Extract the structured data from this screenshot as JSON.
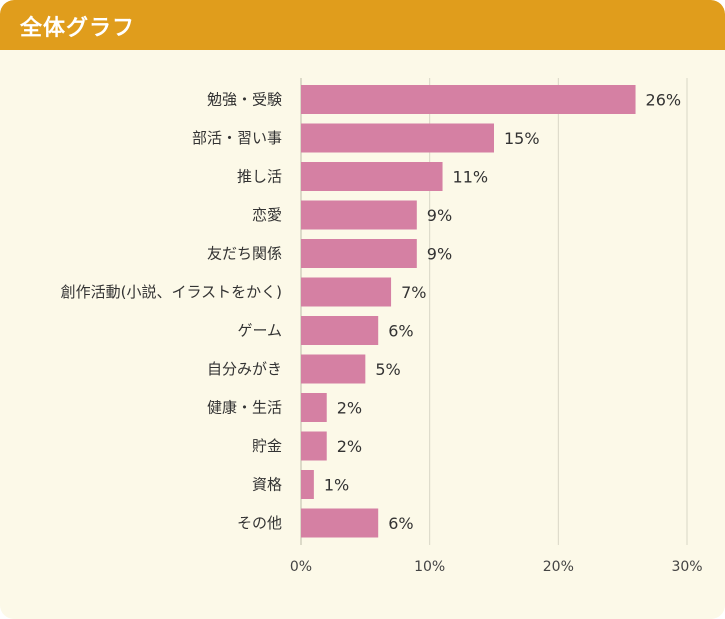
{
  "header": {
    "title": "全体グラフ"
  },
  "colors": {
    "header": "#e09d1c",
    "background": "#fcf9e8",
    "bar": "#d580a3",
    "grid": "#d9d6c6"
  },
  "chart_data": {
    "type": "bar",
    "orientation": "horizontal",
    "title": "全体グラフ",
    "categories": [
      "勉強・受験",
      "部活・習い事",
      "推し活",
      "恋愛",
      "友だち関係",
      "創作活動(小説、イラストをかく)",
      "ゲーム",
      "自分みがき",
      "健康・生活",
      "貯金",
      "資格",
      "その他"
    ],
    "values": [
      26,
      15,
      11,
      9,
      9,
      7,
      6,
      5,
      2,
      2,
      1,
      6
    ],
    "value_labels": [
      "26%",
      "15%",
      "11%",
      "9%",
      "9%",
      "7%",
      "6%",
      "5%",
      "2%",
      "2%",
      "1%",
      "6%"
    ],
    "xlim": [
      0,
      30
    ],
    "xticks": [
      0,
      10,
      20,
      30
    ],
    "xtick_labels": [
      "0%",
      "10%",
      "20%",
      "30%"
    ],
    "grid": true,
    "legend": "none"
  }
}
